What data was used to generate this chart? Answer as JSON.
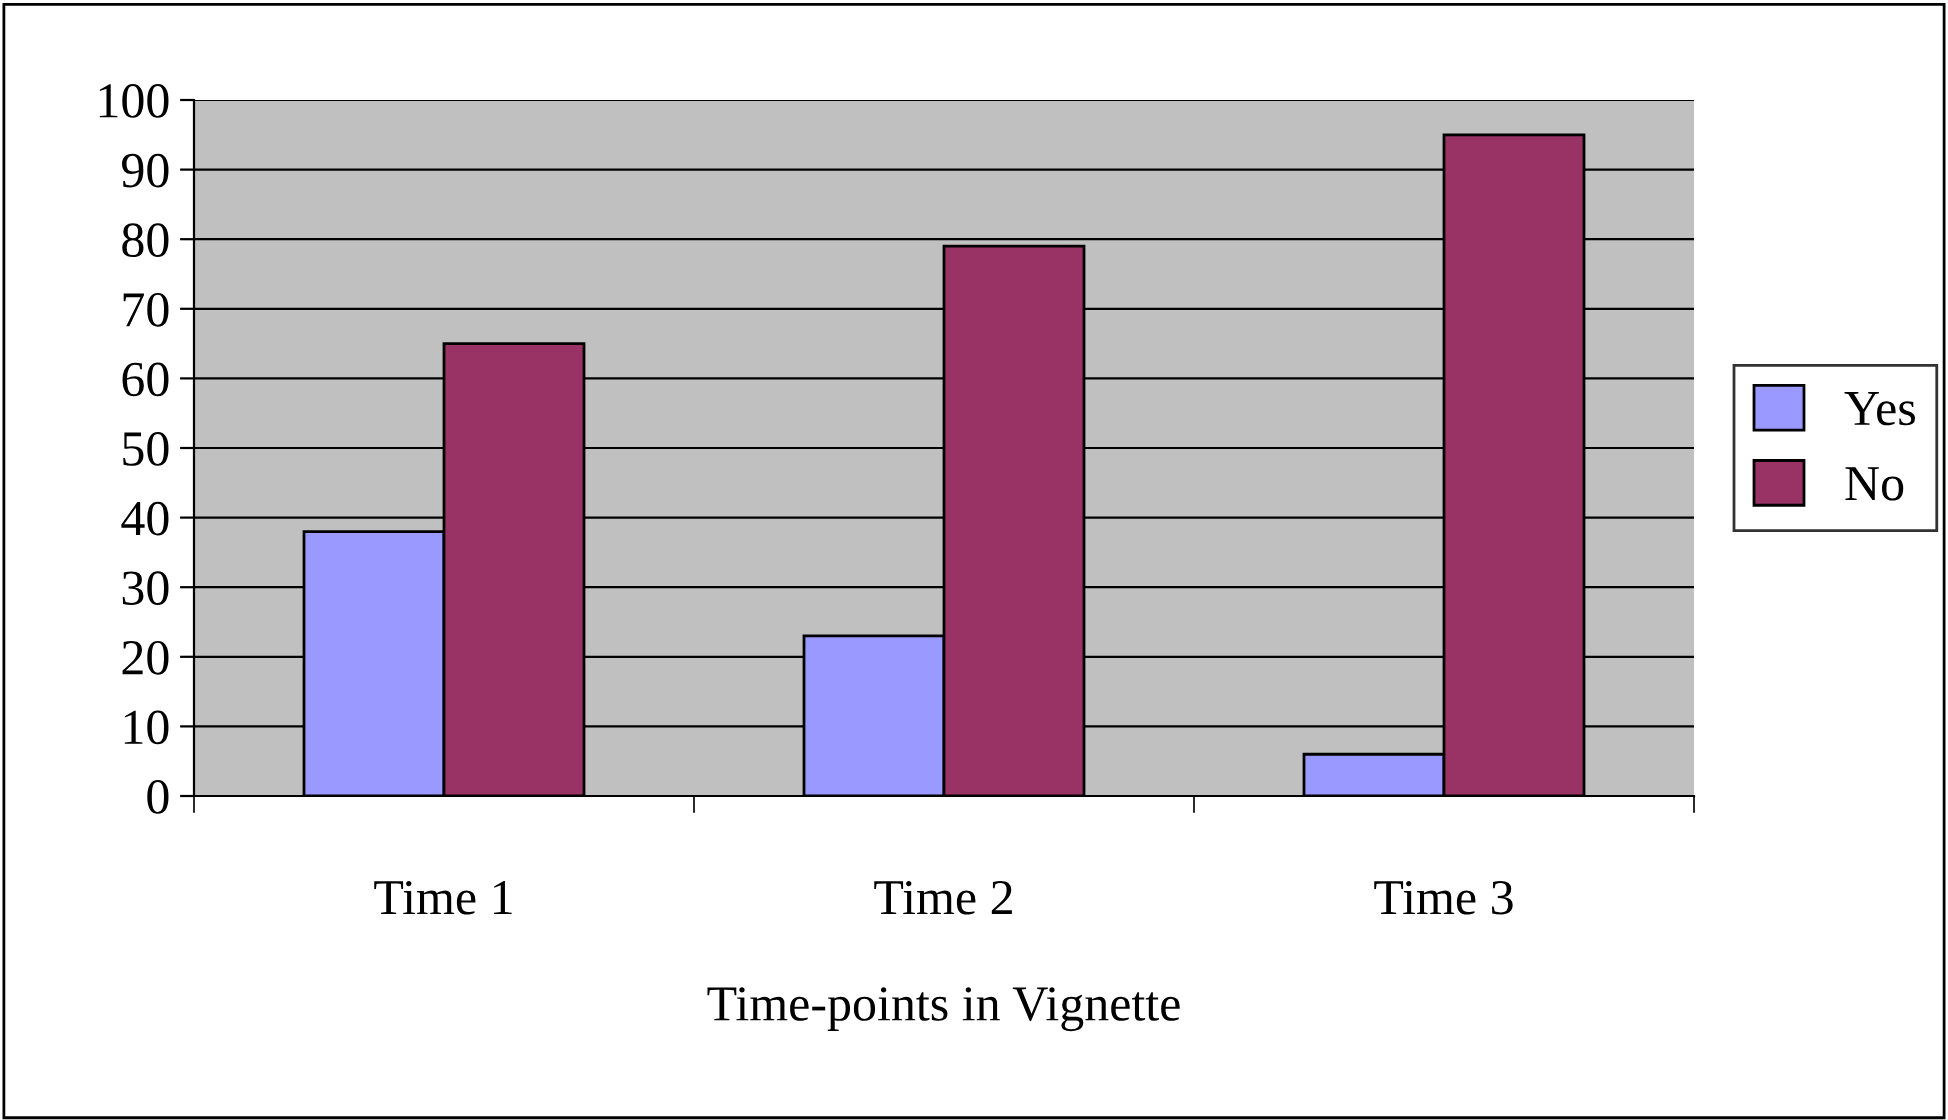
{
  "chart_data": {
    "type": "bar",
    "xlabel": "Time-points in Vignette",
    "categories": [
      "Time 1",
      "Time 2",
      "Time 3"
    ],
    "series": [
      {
        "name": "Yes",
        "color": "#9999ff",
        "values": [
          38,
          23,
          6
        ]
      },
      {
        "name": "No",
        "color": "#993366",
        "values": [
          65,
          79,
          95
        ]
      }
    ],
    "ylim": [
      0,
      100
    ],
    "yticks": [
      0,
      10,
      20,
      30,
      40,
      50,
      60,
      70,
      80,
      90,
      100
    ],
    "grid": "y",
    "legend": "right"
  }
}
